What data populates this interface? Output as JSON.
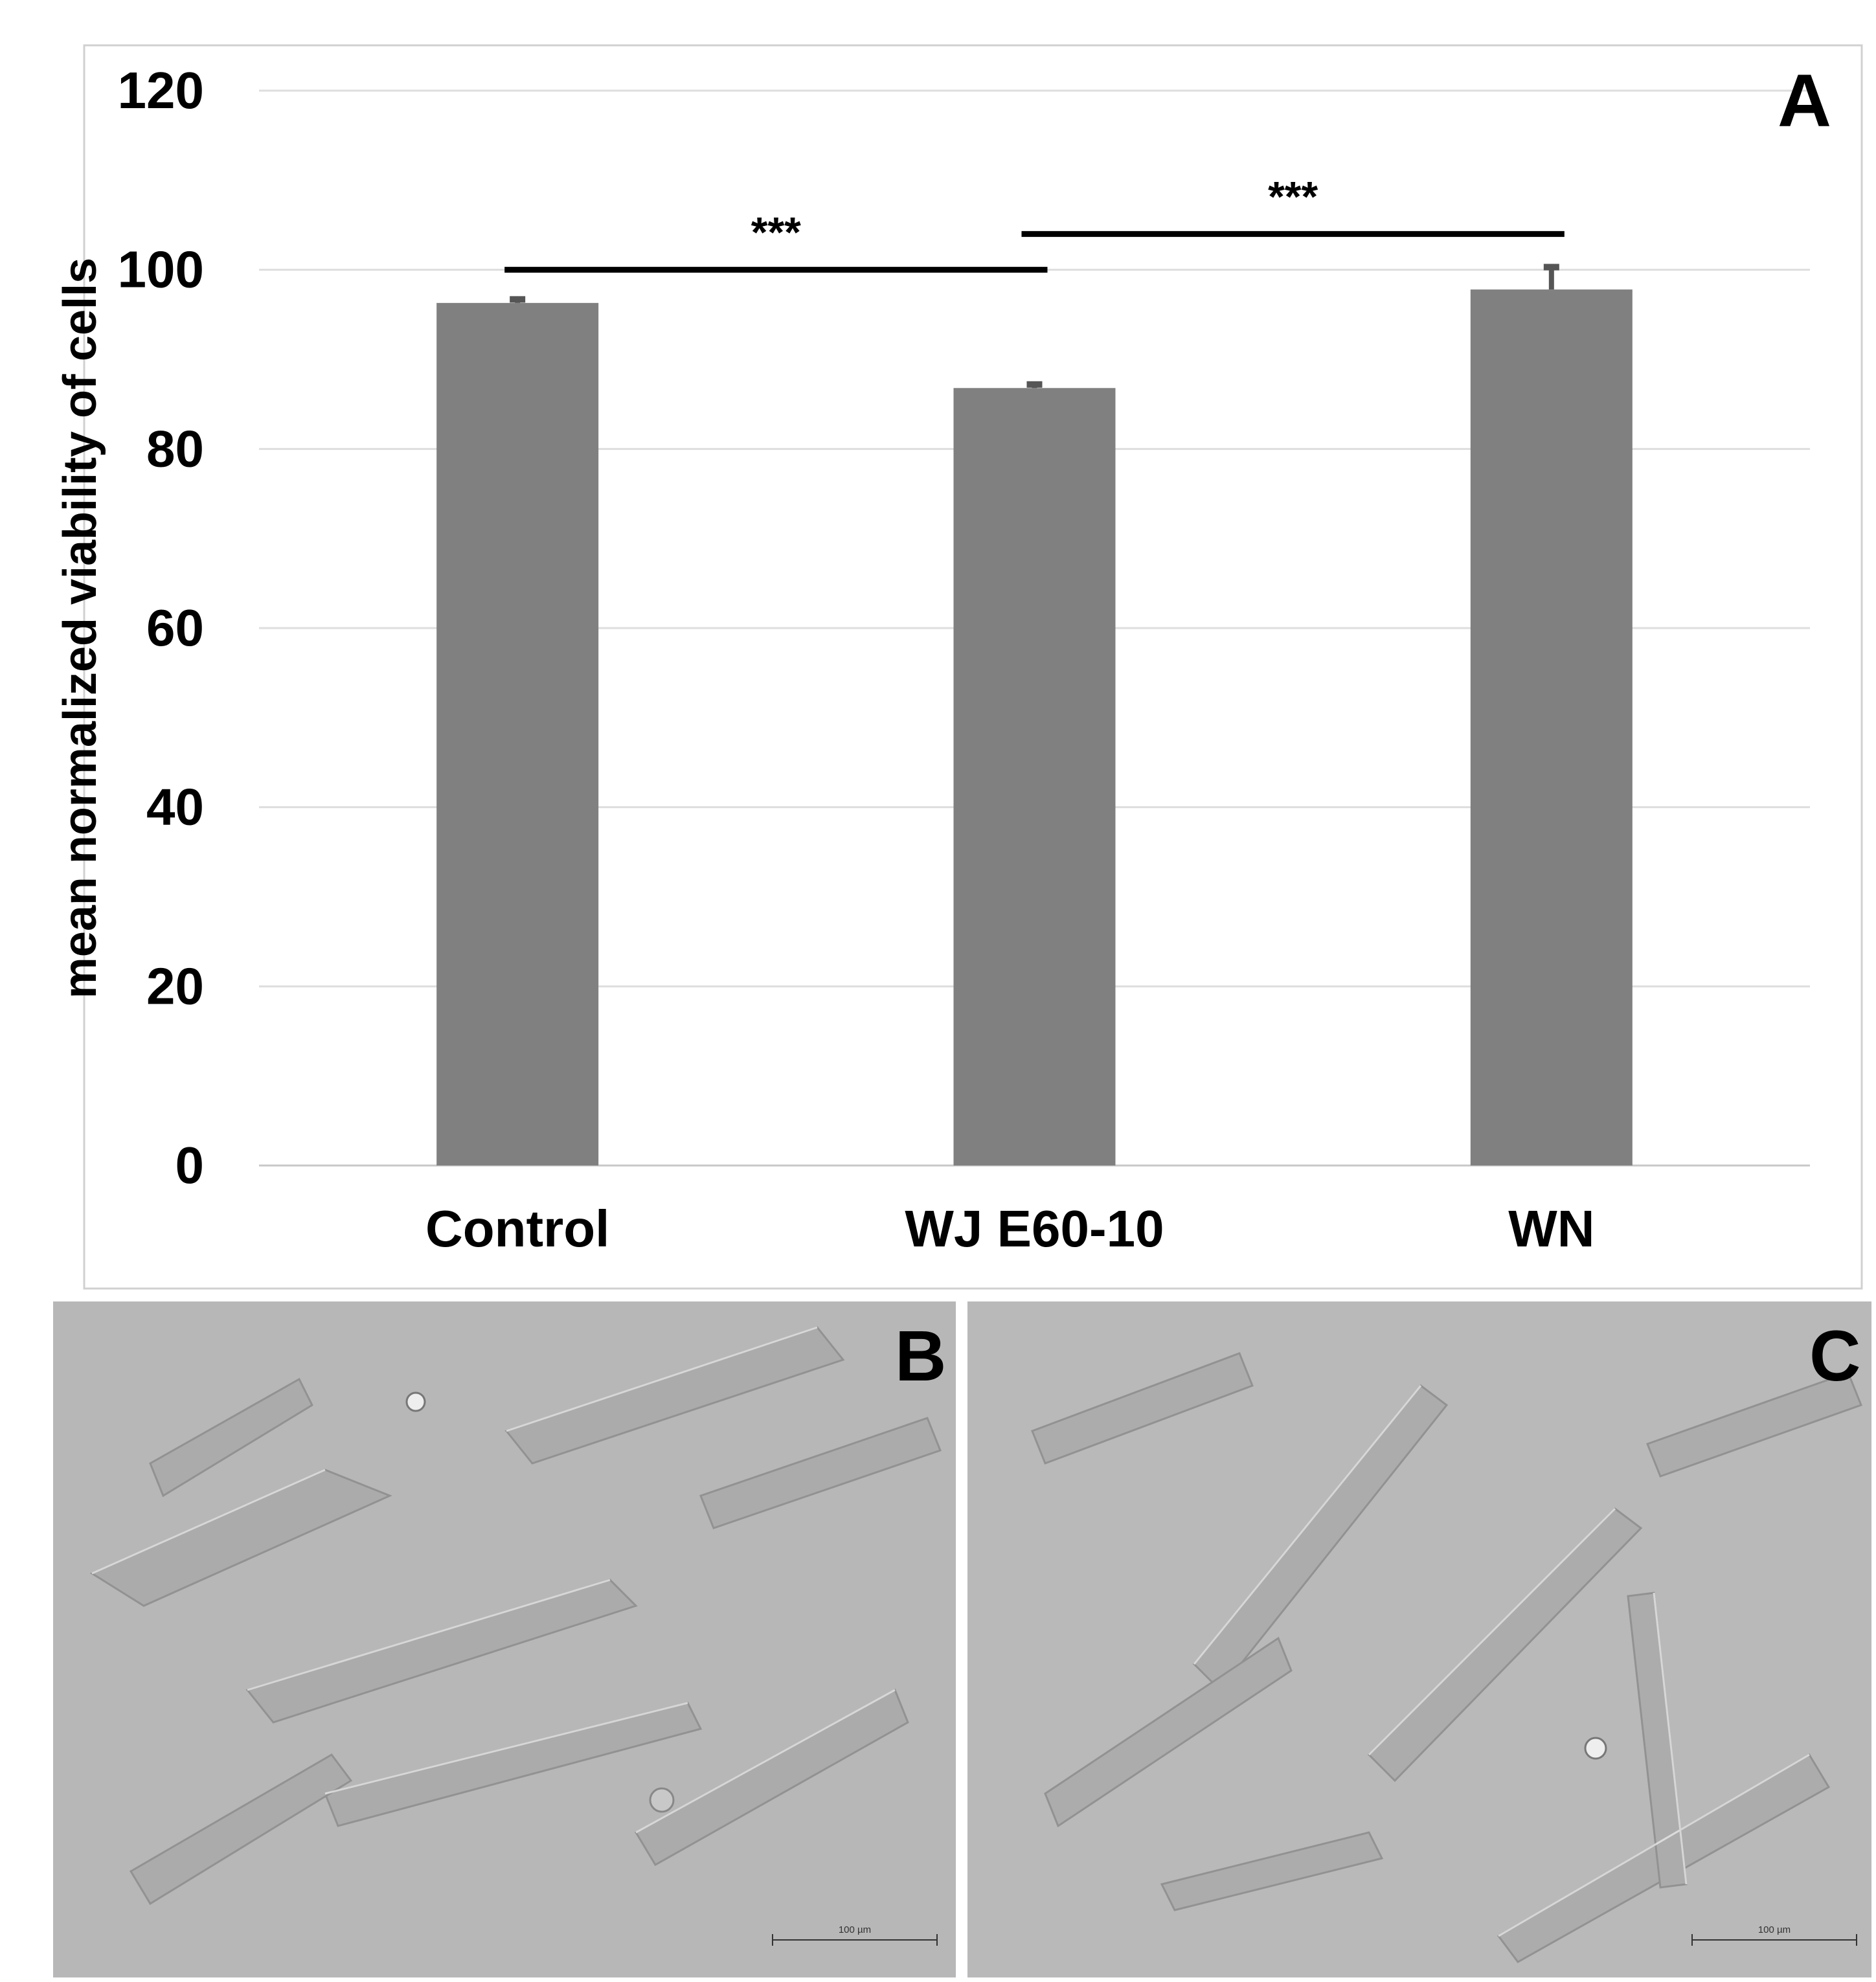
{
  "chart_data": {
    "type": "bar",
    "panel_label": "A",
    "categories": [
      "Control",
      "WJ E60-10",
      "WN"
    ],
    "values": [
      96.3,
      86.8,
      97.8
    ],
    "errors": [
      0.4,
      0.4,
      2.5
    ],
    "ylabel": "mean normalized viability of cells",
    "xlabel": "",
    "ylim": [
      0,
      120
    ],
    "yticks": [
      0,
      20,
      40,
      60,
      80,
      100,
      120
    ],
    "grid": true,
    "bar_color": "#808080",
    "significance": [
      {
        "from": "Control",
        "to": "WJ E60-10",
        "label": "***",
        "level": 100
      },
      {
        "from": "WJ E60-10",
        "to": "WN",
        "label": "***",
        "level": 104
      }
    ]
  },
  "micrographs": [
    {
      "label": "B",
      "scale_label": "100 µm"
    },
    {
      "label": "C",
      "scale_label": "100 µm"
    }
  ]
}
